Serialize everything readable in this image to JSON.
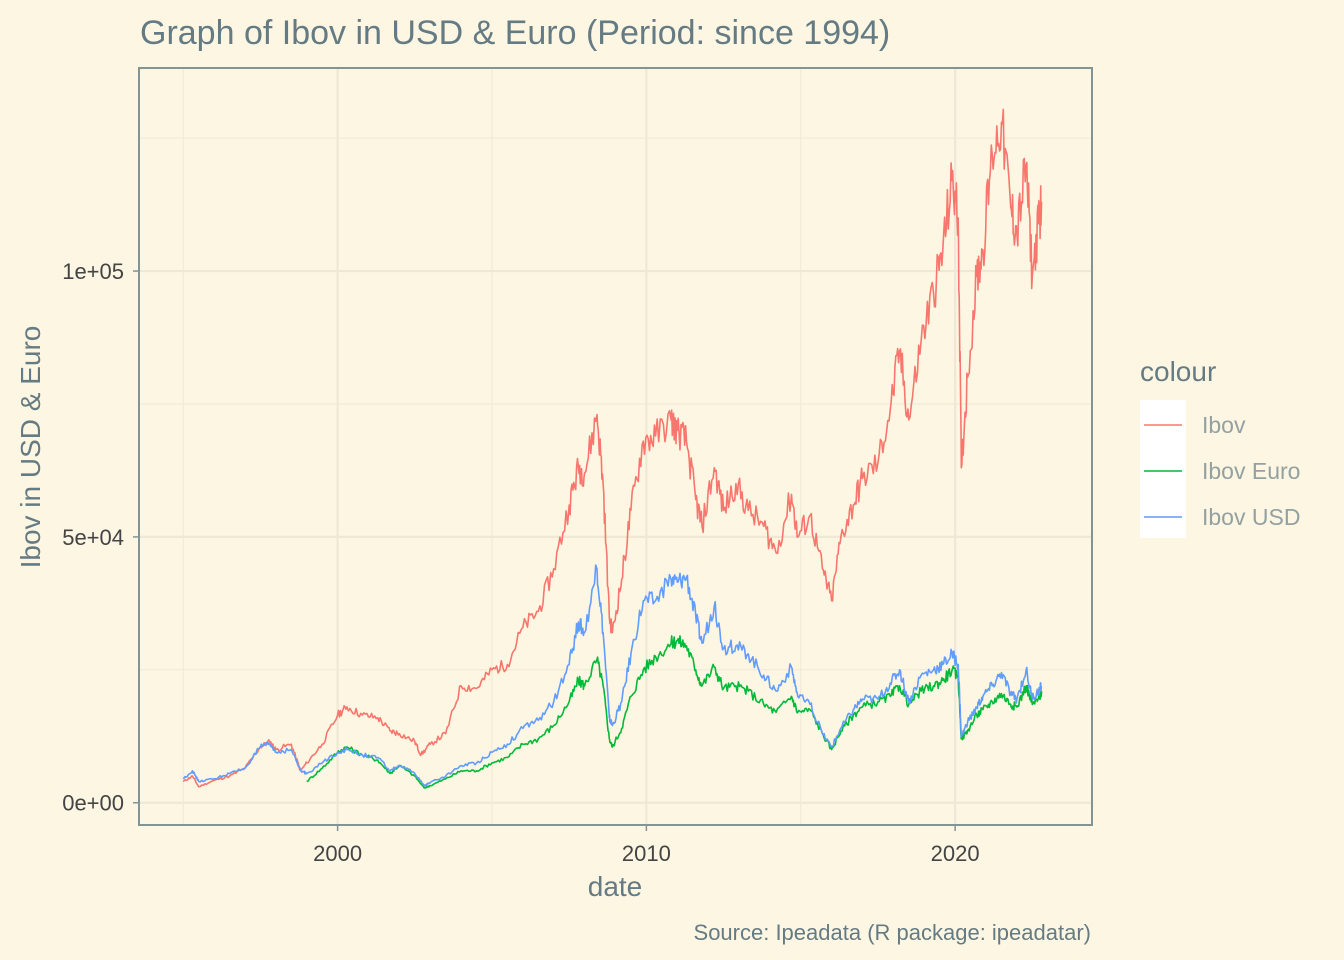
{
  "chart_data": {
    "type": "line",
    "title": "Graph of Ibov in USD & Euro (Period: since 1994)",
    "xlabel": "date",
    "ylabel": "Ibov in USD & Euro",
    "caption": "Source: Ipeadata (R package: ipeadatar)",
    "xlim": [
      1993.6,
      2024.4
    ],
    "ylim": [
      -4000,
      138000
    ],
    "x_ticks": [
      2000,
      2010,
      2020
    ],
    "x_tick_labels": [
      "2000",
      "2010",
      "2020"
    ],
    "x_minor_ticks": [
      1995,
      2005,
      2015
    ],
    "y_ticks": [
      0,
      50000,
      100000
    ],
    "y_tick_labels": [
      "0e+00",
      "5e+04",
      "1e+05"
    ],
    "y_minor_ticks": [
      25000,
      75000,
      125000
    ],
    "grid": true,
    "legend": {
      "title": "colour",
      "position": "right",
      "entries": [
        "Ibov",
        "Ibov Euro",
        "Ibov USD"
      ]
    },
    "series": [
      {
        "name": "Ibov",
        "color": "#f8766d",
        "points": [
          [
            1995.0,
            4000
          ],
          [
            1995.3,
            5000
          ],
          [
            1995.5,
            3000
          ],
          [
            1996.0,
            4200
          ],
          [
            1996.5,
            5000
          ],
          [
            1997.0,
            6500
          ],
          [
            1997.5,
            10500
          ],
          [
            1997.8,
            11500
          ],
          [
            1998.0,
            10000
          ],
          [
            1998.5,
            11000
          ],
          [
            1998.8,
            6000
          ],
          [
            1999.0,
            7500
          ],
          [
            1999.5,
            11000
          ],
          [
            2000.0,
            16500
          ],
          [
            2000.3,
            18000
          ],
          [
            2000.8,
            16500
          ],
          [
            2001.3,
            16000
          ],
          [
            2001.7,
            13500
          ],
          [
            2002.0,
            13000
          ],
          [
            2002.5,
            11500
          ],
          [
            2002.7,
            9000
          ],
          [
            2003.0,
            11000
          ],
          [
            2003.5,
            13000
          ],
          [
            2004.0,
            22000
          ],
          [
            2004.5,
            21500
          ],
          [
            2005.0,
            25000
          ],
          [
            2005.5,
            26000
          ],
          [
            2006.0,
            33000
          ],
          [
            2006.5,
            36000
          ],
          [
            2007.0,
            44000
          ],
          [
            2007.5,
            56000
          ],
          [
            2007.8,
            63000
          ],
          [
            2008.0,
            62000
          ],
          [
            2008.4,
            73000
          ],
          [
            2008.6,
            60000
          ],
          [
            2008.8,
            35000
          ],
          [
            2008.9,
            32000
          ],
          [
            2009.2,
            42000
          ],
          [
            2009.5,
            55000
          ],
          [
            2009.9,
            68000
          ],
          [
            2010.3,
            69000
          ],
          [
            2010.8,
            72000
          ],
          [
            2011.0,
            70000
          ],
          [
            2011.3,
            68000
          ],
          [
            2011.6,
            57000
          ],
          [
            2011.8,
            52000
          ],
          [
            2012.2,
            63000
          ],
          [
            2012.5,
            55000
          ],
          [
            2012.9,
            60000
          ],
          [
            2013.3,
            55000
          ],
          [
            2013.8,
            52000
          ],
          [
            2014.2,
            47000
          ],
          [
            2014.7,
            58000
          ],
          [
            2014.9,
            50000
          ],
          [
            2015.3,
            54000
          ],
          [
            2015.7,
            44000
          ],
          [
            2016.0,
            38000
          ],
          [
            2016.3,
            50000
          ],
          [
            2016.7,
            56000
          ],
          [
            2017.0,
            61000
          ],
          [
            2017.5,
            64000
          ],
          [
            2017.9,
            74000
          ],
          [
            2018.2,
            85000
          ],
          [
            2018.5,
            72000
          ],
          [
            2018.9,
            87000
          ],
          [
            2019.3,
            96000
          ],
          [
            2019.6,
            104000
          ],
          [
            2019.9,
            117000
          ],
          [
            2020.1,
            110000
          ],
          [
            2020.2,
            63000
          ],
          [
            2020.4,
            80000
          ],
          [
            2020.7,
            99000
          ],
          [
            2020.9,
            104000
          ],
          [
            2021.2,
            122000
          ],
          [
            2021.5,
            128000
          ],
          [
            2021.8,
            112000
          ],
          [
            2022.0,
            107000
          ],
          [
            2022.3,
            120000
          ],
          [
            2022.5,
            99000
          ],
          [
            2022.7,
            109000
          ],
          [
            2022.8,
            113000
          ]
        ]
      },
      {
        "name": "Ibov Euro",
        "color": "#00ba38",
        "points": [
          [
            1999.0,
            4000
          ],
          [
            1999.5,
            6500
          ],
          [
            2000.0,
            9500
          ],
          [
            2000.3,
            10500
          ],
          [
            2000.8,
            9000
          ],
          [
            2001.3,
            8000
          ],
          [
            2001.7,
            5500
          ],
          [
            2002.0,
            7000
          ],
          [
            2002.5,
            5000
          ],
          [
            2002.8,
            2800
          ],
          [
            2003.0,
            3200
          ],
          [
            2003.5,
            4500
          ],
          [
            2004.0,
            6000
          ],
          [
            2004.5,
            6000
          ],
          [
            2005.0,
            7500
          ],
          [
            2005.5,
            8500
          ],
          [
            2006.0,
            11000
          ],
          [
            2006.5,
            12000
          ],
          [
            2007.0,
            14500
          ],
          [
            2007.5,
            19000
          ],
          [
            2007.8,
            23000
          ],
          [
            2008.0,
            22000
          ],
          [
            2008.4,
            27000
          ],
          [
            2008.6,
            22000
          ],
          [
            2008.8,
            12000
          ],
          [
            2008.9,
            10500
          ],
          [
            2009.2,
            14000
          ],
          [
            2009.5,
            20000
          ],
          [
            2009.9,
            25000
          ],
          [
            2010.3,
            27500
          ],
          [
            2010.8,
            30000
          ],
          [
            2011.0,
            30500
          ],
          [
            2011.3,
            29500
          ],
          [
            2011.6,
            25000
          ],
          [
            2011.8,
            22000
          ],
          [
            2012.2,
            25500
          ],
          [
            2012.5,
            21500
          ],
          [
            2012.9,
            22000
          ],
          [
            2013.3,
            21000
          ],
          [
            2013.8,
            18500
          ],
          [
            2014.2,
            17000
          ],
          [
            2014.7,
            20000
          ],
          [
            2014.9,
            17000
          ],
          [
            2015.3,
            17500
          ],
          [
            2015.7,
            13000
          ],
          [
            2016.0,
            10000
          ],
          [
            2016.3,
            13500
          ],
          [
            2016.7,
            16500
          ],
          [
            2017.0,
            18000
          ],
          [
            2017.5,
            19000
          ],
          [
            2017.9,
            20000
          ],
          [
            2018.2,
            22000
          ],
          [
            2018.5,
            18500
          ],
          [
            2018.9,
            21000
          ],
          [
            2019.3,
            22000
          ],
          [
            2019.6,
            23000
          ],
          [
            2019.9,
            25000
          ],
          [
            2020.1,
            23500
          ],
          [
            2020.2,
            12000
          ],
          [
            2020.4,
            13500
          ],
          [
            2020.7,
            16500
          ],
          [
            2020.9,
            17500
          ],
          [
            2021.2,
            19000
          ],
          [
            2021.5,
            20500
          ],
          [
            2021.8,
            18500
          ],
          [
            2022.0,
            18000
          ],
          [
            2022.3,
            22000
          ],
          [
            2022.5,
            18500
          ],
          [
            2022.7,
            19500
          ],
          [
            2022.8,
            21000
          ]
        ]
      },
      {
        "name": "Ibov USD",
        "color": "#619cff",
        "points": [
          [
            1995.0,
            4500
          ],
          [
            1995.3,
            6000
          ],
          [
            1995.5,
            4000
          ],
          [
            1996.0,
            4500
          ],
          [
            1996.5,
            5500
          ],
          [
            1997.0,
            6500
          ],
          [
            1997.5,
            10500
          ],
          [
            1997.8,
            11000
          ],
          [
            1998.0,
            9500
          ],
          [
            1998.5,
            10000
          ],
          [
            1998.8,
            6000
          ],
          [
            1999.0,
            5500
          ],
          [
            1999.5,
            7500
          ],
          [
            2000.0,
            9500
          ],
          [
            2000.3,
            10000
          ],
          [
            2000.8,
            9000
          ],
          [
            2001.3,
            8500
          ],
          [
            2001.7,
            6000
          ],
          [
            2002.0,
            7000
          ],
          [
            2002.5,
            5500
          ],
          [
            2002.8,
            3200
          ],
          [
            2003.0,
            3800
          ],
          [
            2003.5,
            5000
          ],
          [
            2004.0,
            7000
          ],
          [
            2004.5,
            7500
          ],
          [
            2005.0,
            9500
          ],
          [
            2005.5,
            11000
          ],
          [
            2006.0,
            14000
          ],
          [
            2006.5,
            15500
          ],
          [
            2007.0,
            19000
          ],
          [
            2007.5,
            26000
          ],
          [
            2007.8,
            34000
          ],
          [
            2008.0,
            32000
          ],
          [
            2008.4,
            44000
          ],
          [
            2008.6,
            32000
          ],
          [
            2008.8,
            16000
          ],
          [
            2008.9,
            14500
          ],
          [
            2009.2,
            19000
          ],
          [
            2009.5,
            28000
          ],
          [
            2009.9,
            38000
          ],
          [
            2010.3,
            38000
          ],
          [
            2010.8,
            42000
          ],
          [
            2011.0,
            41500
          ],
          [
            2011.3,
            42500
          ],
          [
            2011.6,
            35000
          ],
          [
            2011.8,
            30000
          ],
          [
            2012.2,
            37000
          ],
          [
            2012.5,
            29000
          ],
          [
            2012.9,
            29500
          ],
          [
            2013.3,
            28000
          ],
          [
            2013.8,
            24000
          ],
          [
            2014.2,
            21000
          ],
          [
            2014.7,
            25500
          ],
          [
            2014.9,
            20000
          ],
          [
            2015.3,
            18500
          ],
          [
            2015.7,
            13000
          ],
          [
            2016.0,
            10500
          ],
          [
            2016.3,
            14000
          ],
          [
            2016.7,
            17500
          ],
          [
            2017.0,
            19500
          ],
          [
            2017.5,
            19500
          ],
          [
            2017.9,
            22500
          ],
          [
            2018.2,
            25000
          ],
          [
            2018.5,
            19000
          ],
          [
            2018.9,
            24000
          ],
          [
            2019.3,
            25000
          ],
          [
            2019.6,
            26000
          ],
          [
            2019.9,
            28000
          ],
          [
            2020.1,
            26000
          ],
          [
            2020.2,
            12500
          ],
          [
            2020.4,
            15000
          ],
          [
            2020.7,
            18000
          ],
          [
            2020.9,
            20000
          ],
          [
            2021.2,
            22000
          ],
          [
            2021.5,
            24500
          ],
          [
            2021.8,
            20500
          ],
          [
            2022.0,
            19500
          ],
          [
            2022.3,
            25000
          ],
          [
            2022.5,
            19500
          ],
          [
            2022.7,
            21000
          ],
          [
            2022.8,
            22000
          ]
        ]
      }
    ]
  }
}
